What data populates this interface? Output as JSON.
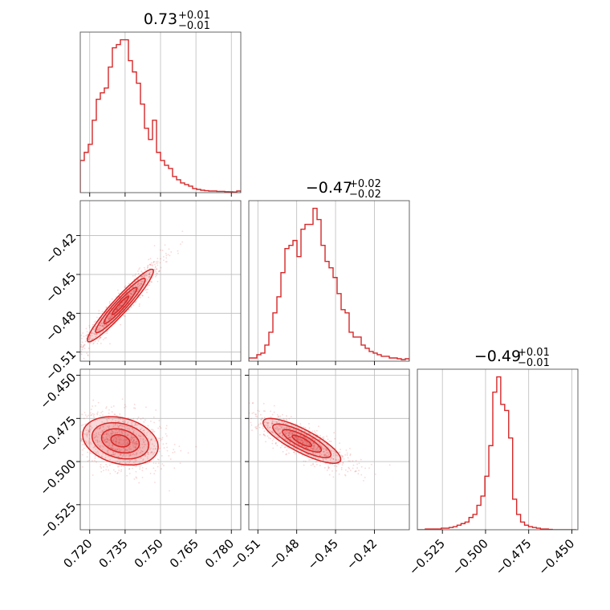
{
  "chart_data": {
    "type": "corner",
    "color": "#d62728",
    "parameters": [
      {
        "title_value": "0.73",
        "title_plus": "+0.01",
        "title_minus": "−0.01",
        "range": [
          0.716,
          0.784
        ],
        "ticks": [
          0.72,
          0.735,
          0.75,
          0.765,
          0.78
        ],
        "tick_labels": [
          "0.720",
          "0.735",
          "0.750",
          "0.765",
          "0.780"
        ],
        "hist_edges_start": 0.716,
        "hist_bin_width": 0.0017,
        "hist_counts": [
          0.2,
          0.25,
          0.3,
          0.45,
          0.58,
          0.62,
          0.65,
          0.78,
          0.9,
          0.92,
          0.95,
          0.95,
          0.82,
          0.75,
          0.68,
          0.55,
          0.4,
          0.33,
          0.45,
          0.25,
          0.2,
          0.17,
          0.15,
          0.1,
          0.08,
          0.06,
          0.05,
          0.04,
          0.025,
          0.02,
          0.015,
          0.012,
          0.01,
          0.01,
          0.008,
          0.008,
          0.006,
          0.005,
          0.004,
          0.01
        ]
      },
      {
        "title_value": "−0.47",
        "title_plus": "+0.02",
        "title_minus": "−0.02",
        "range": [
          -0.517,
          -0.393
        ],
        "ticks": [
          -0.51,
          -0.48,
          -0.45,
          -0.42
        ],
        "tick_labels": [
          "−0.51",
          "−0.48",
          "−0.45",
          "−0.42"
        ],
        "hist_edges_start": -0.517,
        "hist_bin_width": 0.0031,
        "hist_counts": [
          0.02,
          0.02,
          0.04,
          0.05,
          0.1,
          0.18,
          0.3,
          0.4,
          0.55,
          0.7,
          0.72,
          0.75,
          0.65,
          0.82,
          0.85,
          0.85,
          0.95,
          0.88,
          0.72,
          0.62,
          0.58,
          0.52,
          0.42,
          0.32,
          0.3,
          0.18,
          0.15,
          0.15,
          0.1,
          0.08,
          0.06,
          0.05,
          0.04,
          0.03,
          0.03,
          0.02,
          0.02,
          0.015,
          0.01,
          0.015
        ]
      },
      {
        "title_value": "−0.49",
        "title_plus": "+0.01",
        "title_minus": "−0.01",
        "range": [
          -0.5395,
          -0.4465
        ],
        "ticks": [
          -0.525,
          -0.5,
          -0.475,
          -0.45
        ],
        "tick_labels": [
          "−0.525",
          "−0.500",
          "−0.475",
          "−0.450"
        ],
        "hist_edges_start": -0.5395,
        "hist_bin_width": 0.0023,
        "hist_counts": [
          0.0,
          0.0,
          0.005,
          0.005,
          0.005,
          0.005,
          0.01,
          0.01,
          0.015,
          0.02,
          0.03,
          0.04,
          0.05,
          0.08,
          0.1,
          0.16,
          0.22,
          0.35,
          0.55,
          0.9,
          1.0,
          0.82,
          0.78,
          0.6,
          0.2,
          0.1,
          0.05,
          0.03,
          0.02,
          0.015,
          0.01,
          0.005,
          0.005,
          0.002,
          0.0,
          0.0,
          0.0,
          0.0,
          0.0,
          0.0
        ]
      }
    ],
    "pairs": [
      {
        "x_param": 0,
        "y_param": 1,
        "center": [
          0.733,
          -0.474
        ],
        "sd": [
          0.007,
          0.014
        ],
        "corr": 0.95
      },
      {
        "x_param": 0,
        "y_param": 2,
        "center": [
          0.733,
          -0.488
        ],
        "sd": [
          0.008,
          0.007
        ],
        "corr": -0.25
      },
      {
        "x_param": 1,
        "y_param": 2,
        "center": [
          -0.476,
          -0.488
        ],
        "sd": [
          0.015,
          0.0065
        ],
        "corr": -0.82
      }
    ],
    "contour_levels_sigma": [
      0.5,
      1.0,
      1.5,
      2.0
    ],
    "grid": true,
    "legend": "none"
  }
}
